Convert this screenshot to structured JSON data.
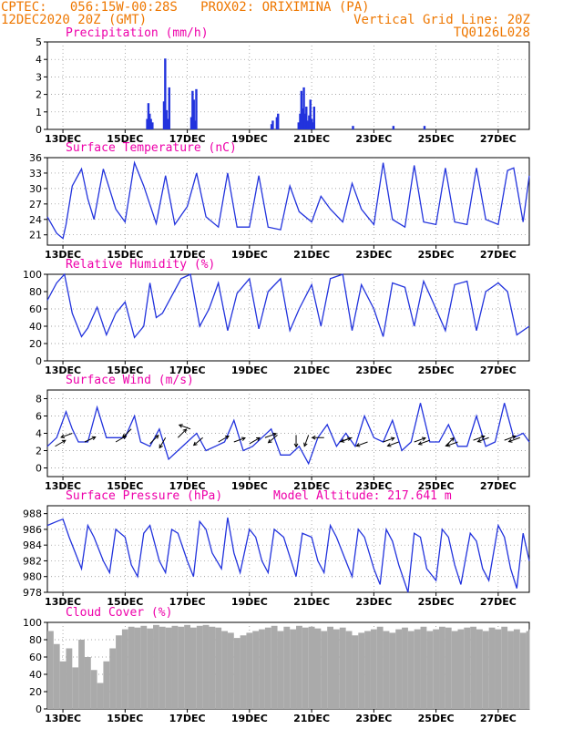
{
  "header": {
    "line1_left": "CPTEC:   056:15W-00:28S   PROX02: ORIXIMINA (PA)",
    "line2_left": "12DEC2020 20Z (GMT)",
    "line2_right": "Vertical Grid Line: 20Z",
    "line3_right": "TQ0126L028"
  },
  "colors": {
    "header": "#ee7700",
    "panel_title": "#ee00aa",
    "series": "#2233dd",
    "cloud": "#aaaaaa",
    "wind_arrow": "#000000"
  },
  "chart_data": [
    {
      "id": "precip",
      "type": "bar",
      "title": "Precipitation (mm/h)",
      "ylim": [
        0,
        5
      ],
      "yticks": [
        0,
        1,
        2,
        3,
        4,
        5
      ],
      "xlim": [
        0,
        15.5
      ],
      "xticks": [
        0.5,
        2.5,
        4.5,
        6.5,
        8.5,
        10.5,
        12.5,
        14.5
      ],
      "xtick_labels": [
        "13DEC",
        "15DEC",
        "17DEC",
        "19DEC",
        "21DEC",
        "23DEC",
        "25DEC",
        "27DEC"
      ],
      "x": [
        3.21,
        3.25,
        3.29,
        3.33,
        3.38,
        3.75,
        3.79,
        3.83,
        3.88,
        3.92,
        4.63,
        4.67,
        4.71,
        4.75,
        4.79,
        7.21,
        7.25,
        7.38,
        7.42,
        8.08,
        8.13,
        8.17,
        8.21,
        8.25,
        8.29,
        8.33,
        8.38,
        8.42,
        8.46,
        8.5,
        8.54,
        8.58,
        9.83,
        11.13,
        12.13
      ],
      "values": [
        0.6,
        1.5,
        0.9,
        0.6,
        0.4,
        1.6,
        4.05,
        1.1,
        0.6,
        2.4,
        0.7,
        2.2,
        1.7,
        0.5,
        2.3,
        0.3,
        0.5,
        0.7,
        0.9,
        0.4,
        0.9,
        2.2,
        1.2,
        2.4,
        0.9,
        1.3,
        0.5,
        0.8,
        1.7,
        0.6,
        0.4,
        1.3,
        0.2,
        0.2,
        0.2
      ]
    },
    {
      "id": "temp",
      "type": "line",
      "title": "Surface Temperature (nC)",
      "ylim": [
        19,
        36
      ],
      "yticks": [
        21,
        24,
        27,
        30,
        33,
        36
      ],
      "xlim": [
        0,
        15.5
      ],
      "xticks": [
        0.5,
        2.5,
        4.5,
        6.5,
        8.5,
        10.5,
        12.5,
        14.5
      ],
      "xtick_labels": [
        "13DEC",
        "15DEC",
        "17DEC",
        "19DEC",
        "21DEC",
        "23DEC",
        "25DEC",
        "27DEC"
      ],
      "x": [
        0,
        0.3,
        0.5,
        0.6,
        0.8,
        1.1,
        1.3,
        1.5,
        1.8,
        2.2,
        2.5,
        2.8,
        3.1,
        3.5,
        3.8,
        4.1,
        4.5,
        4.8,
        5.1,
        5.5,
        5.8,
        6.1,
        6.5,
        6.8,
        7.1,
        7.5,
        7.8,
        8.1,
        8.5,
        8.8,
        9.1,
        9.5,
        9.8,
        10.1,
        10.5,
        10.8,
        11.1,
        11.5,
        11.8,
        12.1,
        12.5,
        12.8,
        13.1,
        13.5,
        13.8,
        14.1,
        14.5,
        14.8,
        15.0,
        15.3,
        15.5
      ],
      "values": [
        24.5,
        21.3,
        20.3,
        23.0,
        30.5,
        33.8,
        28.0,
        24.0,
        33.8,
        26.0,
        23.5,
        35.0,
        30.5,
        23.2,
        32.5,
        23.0,
        26.5,
        33.0,
        24.5,
        22.5,
        33.0,
        22.5,
        22.5,
        32.5,
        22.5,
        22.0,
        30.5,
        25.5,
        23.5,
        28.5,
        26.0,
        23.5,
        31.0,
        26.0,
        23.0,
        35.0,
        24.0,
        22.5,
        34.5,
        23.5,
        23.0,
        34.0,
        23.5,
        23.0,
        34.0,
        24.0,
        23.0,
        33.5,
        34.0,
        23.5,
        32.5
      ]
    },
    {
      "id": "rh",
      "type": "line",
      "title": "Relative Humidity (%)",
      "ylim": [
        0,
        100
      ],
      "yticks": [
        0,
        20,
        40,
        60,
        80,
        100
      ],
      "xlim": [
        0,
        15.5
      ],
      "xticks": [
        0.5,
        2.5,
        4.5,
        6.5,
        8.5,
        10.5,
        12.5,
        14.5
      ],
      "xtick_labels": [
        "13DEC",
        "15DEC",
        "17DEC",
        "19DEC",
        "21DEC",
        "23DEC",
        "25DEC",
        "27DEC"
      ],
      "x": [
        0,
        0.3,
        0.55,
        0.8,
        1.1,
        1.3,
        1.6,
        1.9,
        2.2,
        2.5,
        2.8,
        3.1,
        3.3,
        3.5,
        3.7,
        4.0,
        4.3,
        4.6,
        4.9,
        5.2,
        5.5,
        5.8,
        6.1,
        6.5,
        6.8,
        7.1,
        7.5,
        7.8,
        8.1,
        8.5,
        8.8,
        9.1,
        9.5,
        9.8,
        10.1,
        10.5,
        10.8,
        11.1,
        11.5,
        11.8,
        12.1,
        12.5,
        12.8,
        13.1,
        13.5,
        13.8,
        14.1,
        14.5,
        14.8,
        15.1,
        15.5
      ],
      "values": [
        70,
        90,
        100,
        55,
        28,
        38,
        62,
        30,
        55,
        68,
        27,
        40,
        90,
        50,
        55,
        75,
        95,
        100,
        40,
        60,
        90,
        35,
        78,
        95,
        37,
        80,
        95,
        35,
        60,
        88,
        40,
        95,
        100,
        35,
        88,
        60,
        28,
        90,
        85,
        40,
        92,
        60,
        35,
        88,
        92,
        35,
        80,
        90,
        80,
        30,
        40
      ]
    },
    {
      "id": "wind",
      "type": "line",
      "title": "Surface Wind (m/s)",
      "ylim": [
        -1,
        9
      ],
      "yticks": [
        0,
        2,
        4,
        6,
        8
      ],
      "xlim": [
        0,
        15.5
      ],
      "xticks": [
        0.5,
        2.5,
        4.5,
        6.5,
        8.5,
        10.5,
        12.5,
        14.5
      ],
      "xtick_labels": [
        "13DEC",
        "15DEC",
        "17DEC",
        "19DEC",
        "21DEC",
        "23DEC",
        "25DEC",
        "27DEC"
      ],
      "x": [
        0,
        0.3,
        0.6,
        0.8,
        1.0,
        1.3,
        1.6,
        1.9,
        2.2,
        2.5,
        2.8,
        3.0,
        3.3,
        3.6,
        3.9,
        4.2,
        4.5,
        4.8,
        5.1,
        5.4,
        5.7,
        6.0,
        6.3,
        6.6,
        6.9,
        7.2,
        7.5,
        7.8,
        8.1,
        8.4,
        8.7,
        9.0,
        9.3,
        9.6,
        9.9,
        10.2,
        10.5,
        10.8,
        11.1,
        11.4,
        11.7,
        12.0,
        12.3,
        12.6,
        12.9,
        13.2,
        13.5,
        13.8,
        14.1,
        14.4,
        14.7,
        15.0,
        15.3,
        15.5
      ],
      "values": [
        2.5,
        3.5,
        6.5,
        4.5,
        3.0,
        3.0,
        7.0,
        3.5,
        3.5,
        3.5,
        6.0,
        3.0,
        2.5,
        4.5,
        1.0,
        2.0,
        3.0,
        4.0,
        2.0,
        2.5,
        3.0,
        5.5,
        2.0,
        2.5,
        3.5,
        4.5,
        1.5,
        1.5,
        2.5,
        0.5,
        3.5,
        5.0,
        2.5,
        4.0,
        2.5,
        6.0,
        3.5,
        3.0,
        5.5,
        2.0,
        3.0,
        7.5,
        3.0,
        3.0,
        5.0,
        2.5,
        2.5,
        6.0,
        2.5,
        3.0,
        7.5,
        3.5,
        4.0,
        3.0
      ],
      "arrows": [
        {
          "x": 0.25,
          "y": 2.5,
          "dir": 30
        },
        {
          "x": 0.8,
          "y": 4.0,
          "dir": 200
        },
        {
          "x": 1.2,
          "y": 3.0,
          "dir": 25
        },
        {
          "x": 2.2,
          "y": 3.0,
          "dir": 30
        },
        {
          "x": 2.7,
          "y": 4.5,
          "dir": 225
        },
        {
          "x": 3.3,
          "y": 2.8,
          "dir": 45
        },
        {
          "x": 3.8,
          "y": 3.5,
          "dir": 240
        },
        {
          "x": 4.2,
          "y": 3.5,
          "dir": 45
        },
        {
          "x": 4.6,
          "y": 4.5,
          "dir": 160
        },
        {
          "x": 5.0,
          "y": 3.5,
          "dir": 220
        },
        {
          "x": 5.5,
          "y": 3.0,
          "dir": 30
        },
        {
          "x": 6.0,
          "y": 3.0,
          "dir": 20
        },
        {
          "x": 6.5,
          "y": 2.8,
          "dir": 30
        },
        {
          "x": 7.0,
          "y": 3.5,
          "dir": 20
        },
        {
          "x": 7.4,
          "y": 3.8,
          "dir": 220
        },
        {
          "x": 8.0,
          "y": 3.8,
          "dir": 270
        },
        {
          "x": 8.4,
          "y": 3.8,
          "dir": 250
        },
        {
          "x": 8.9,
          "y": 3.5,
          "dir": 180
        },
        {
          "x": 9.4,
          "y": 3.0,
          "dir": 20
        },
        {
          "x": 9.8,
          "y": 3.5,
          "dir": 200
        },
        {
          "x": 10.3,
          "y": 3.0,
          "dir": 200
        },
        {
          "x": 10.8,
          "y": 3.0,
          "dir": 20
        },
        {
          "x": 11.3,
          "y": 3.0,
          "dir": 200
        },
        {
          "x": 11.8,
          "y": 3.0,
          "dir": 20
        },
        {
          "x": 12.3,
          "y": 3.2,
          "dir": 200
        },
        {
          "x": 12.8,
          "y": 2.5,
          "dir": 45
        },
        {
          "x": 13.2,
          "y": 3.0,
          "dir": 200
        },
        {
          "x": 13.7,
          "y": 3.2,
          "dir": 20
        },
        {
          "x": 14.2,
          "y": 3.5,
          "dir": 200
        },
        {
          "x": 14.7,
          "y": 3.2,
          "dir": 20
        },
        {
          "x": 15.2,
          "y": 3.5,
          "dir": 200
        }
      ]
    },
    {
      "id": "pres",
      "type": "line",
      "title": "Surface Pressure (hPa)",
      "annotation": "Model Altitude: 217.641  m",
      "ylim": [
        978,
        989
      ],
      "yticks": [
        978,
        980,
        982,
        984,
        986,
        988
      ],
      "xlim": [
        0,
        15.5
      ],
      "xticks": [
        0.5,
        2.5,
        4.5,
        6.5,
        8.5,
        10.5,
        12.5,
        14.5
      ],
      "xtick_labels": [
        "13DEC",
        "15DEC",
        "17DEC",
        "19DEC",
        "21DEC",
        "23DEC",
        "25DEC",
        "27DEC"
      ],
      "x": [
        0,
        0.3,
        0.5,
        0.7,
        0.9,
        1.1,
        1.3,
        1.5,
        1.8,
        2.0,
        2.2,
        2.5,
        2.7,
        2.9,
        3.1,
        3.3,
        3.6,
        3.8,
        4.0,
        4.2,
        4.5,
        4.7,
        4.9,
        5.1,
        5.3,
        5.6,
        5.8,
        6.0,
        6.2,
        6.5,
        6.7,
        6.9,
        7.1,
        7.3,
        7.6,
        7.8,
        8.0,
        8.2,
        8.5,
        8.7,
        8.9,
        9.1,
        9.3,
        9.6,
        9.8,
        10.0,
        10.2,
        10.5,
        10.7,
        10.9,
        11.1,
        11.3,
        11.6,
        11.8,
        12.0,
        12.2,
        12.5,
        12.7,
        12.9,
        13.1,
        13.3,
        13.6,
        13.8,
        14.0,
        14.2,
        14.5,
        14.7,
        14.9,
        15.1,
        15.3,
        15.5
      ],
      "values": [
        986.5,
        987.0,
        987.3,
        985.0,
        983.0,
        981.0,
        986.5,
        985.0,
        982.0,
        980.5,
        986.0,
        985.0,
        981.5,
        980.0,
        985.5,
        986.5,
        982.0,
        980.5,
        986.0,
        985.5,
        982.0,
        980.0,
        987.0,
        986.0,
        983.0,
        981.0,
        987.5,
        983.0,
        980.5,
        986.0,
        985.0,
        982.0,
        980.5,
        986.0,
        985.0,
        982.5,
        980.0,
        985.5,
        985.0,
        982.0,
        980.5,
        986.5,
        985.0,
        982.0,
        980.0,
        986.0,
        985.0,
        981.0,
        979.0,
        986.0,
        984.5,
        981.5,
        978.0,
        985.5,
        985.0,
        981.0,
        979.5,
        986.0,
        985.0,
        981.5,
        979.0,
        985.5,
        984.5,
        981.0,
        979.5,
        986.5,
        985.0,
        981.0,
        978.5,
        985.5,
        982.0
      ]
    },
    {
      "id": "cloud",
      "type": "area",
      "title": "Cloud Cover (%)",
      "ylim": [
        0,
        100
      ],
      "yticks": [
        0,
        20,
        40,
        60,
        80,
        100
      ],
      "xlim": [
        0,
        15.5
      ],
      "xticks": [
        0.5,
        2.5,
        4.5,
        6.5,
        8.5,
        10.5,
        12.5,
        14.5
      ],
      "xtick_labels": [
        "13DEC",
        "15DEC",
        "17DEC",
        "19DEC",
        "21DEC",
        "23DEC",
        "25DEC",
        "27DEC"
      ],
      "x": [
        0,
        0.2,
        0.4,
        0.6,
        0.8,
        1.0,
        1.2,
        1.4,
        1.6,
        1.8,
        2.0,
        2.2,
        2.4,
        2.6,
        2.8,
        3.0,
        3.2,
        3.4,
        3.6,
        3.8,
        4.0,
        4.2,
        4.4,
        4.6,
        4.8,
        5.0,
        5.2,
        5.4,
        5.6,
        5.8,
        6.0,
        6.2,
        6.4,
        6.6,
        6.8,
        7.0,
        7.2,
        7.4,
        7.6,
        7.8,
        8.0,
        8.2,
        8.4,
        8.6,
        8.8,
        9.0,
        9.2,
        9.4,
        9.6,
        9.8,
        10.0,
        10.2,
        10.4,
        10.6,
        10.8,
        11.0,
        11.2,
        11.4,
        11.6,
        11.8,
        12.0,
        12.2,
        12.4,
        12.6,
        12.8,
        13.0,
        13.2,
        13.4,
        13.6,
        13.8,
        14.0,
        14.2,
        14.4,
        14.6,
        14.8,
        15.0,
        15.2,
        15.4,
        15.5
      ],
      "values": [
        90,
        75,
        55,
        70,
        48,
        80,
        60,
        45,
        30,
        55,
        70,
        85,
        92,
        95,
        94,
        96,
        93,
        97,
        95,
        94,
        96,
        95,
        97,
        94,
        96,
        97,
        95,
        94,
        90,
        88,
        82,
        85,
        88,
        90,
        92,
        94,
        96,
        90,
        95,
        92,
        96,
        94,
        95,
        93,
        90,
        95,
        92,
        94,
        90,
        85,
        88,
        90,
        92,
        95,
        90,
        88,
        92,
        94,
        90,
        92,
        95,
        90,
        92,
        95,
        94,
        90,
        92,
        94,
        95,
        92,
        90,
        94,
        92,
        95,
        90,
        92,
        88,
        90,
        92
      ]
    }
  ]
}
